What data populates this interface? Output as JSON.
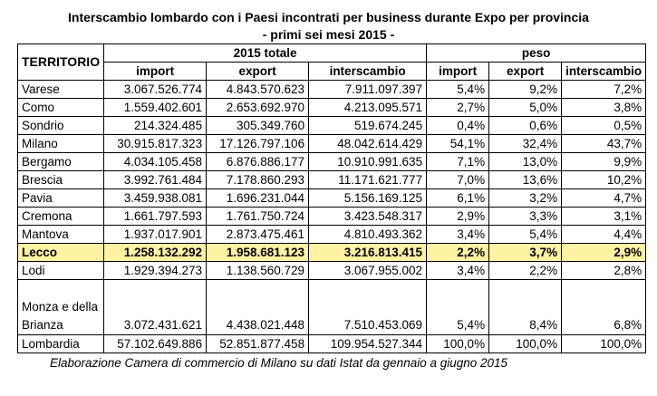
{
  "title_line1": "Interscambio lombardo con i Paesi incontrati per business durante Expo per provincia",
  "title_line2": "- primi sei mesi 2015 -",
  "headers": {
    "territorio": "TERRITORIO",
    "group1": "2015 totale",
    "group2": "peso",
    "import": "import",
    "export": "export",
    "interscambio": "interscambio"
  },
  "rows": [
    {
      "name": "Varese",
      "import": "3.067.526.774",
      "export": "4.843.570.623",
      "interscambio": "7.911.097.397",
      "p_import": "5,4%",
      "p_export": "9,2%",
      "p_inter": "7,2%"
    },
    {
      "name": "Como",
      "import": "1.559.402.601",
      "export": "2.653.692.970",
      "interscambio": "4.213.095.571",
      "p_import": "2,7%",
      "p_export": "5,0%",
      "p_inter": "3,8%"
    },
    {
      "name": "Sondrio",
      "import": "214.324.485",
      "export": "305.349.760",
      "interscambio": "519.674.245",
      "p_import": "0,4%",
      "p_export": "0,6%",
      "p_inter": "0,5%"
    },
    {
      "name": "Milano",
      "import": "30.915.817.323",
      "export": "17.126.797.106",
      "interscambio": "48.042.614.429",
      "p_import": "54,1%",
      "p_export": "32,4%",
      "p_inter": "43,7%"
    },
    {
      "name": "Bergamo",
      "import": "4.034.105.458",
      "export": "6.876.886.177",
      "interscambio": "10.910.991.635",
      "p_import": "7,1%",
      "p_export": "13,0%",
      "p_inter": "9,9%"
    },
    {
      "name": "Brescia",
      "import": "3.992.761.484",
      "export": "7.178.860.293",
      "interscambio": "11.171.621.777",
      "p_import": "7,0%",
      "p_export": "13,6%",
      "p_inter": "10,2%"
    },
    {
      "name": "Pavia",
      "import": "3.459.938.081",
      "export": "1.696.231.044",
      "interscambio": "5.156.169.125",
      "p_import": "6,1%",
      "p_export": "3,2%",
      "p_inter": "4,7%"
    },
    {
      "name": "Cremona",
      "import": "1.661.797.593",
      "export": "1.761.750.724",
      "interscambio": "3.423.548.317",
      "p_import": "2,9%",
      "p_export": "3,3%",
      "p_inter": "3,1%"
    },
    {
      "name": "Mantova",
      "import": "1.937.017.901",
      "export": "2.873.475.461",
      "interscambio": "4.810.493.362",
      "p_import": "3,4%",
      "p_export": "5,4%",
      "p_inter": "4,4%"
    },
    {
      "name": "Lecco",
      "import": "1.258.132.292",
      "export": "1.958.681.123",
      "interscambio": "3.216.813.415",
      "p_import": "2,2%",
      "p_export": "3,7%",
      "p_inter": "2,9%"
    },
    {
      "name": "Lodi",
      "import": "1.929.394.273",
      "export": "1.138.560.729",
      "interscambio": "3.067.955.002",
      "p_import": "3,4%",
      "p_export": "2,2%",
      "p_inter": "2,8%"
    },
    {
      "name": "Monza e della Brianza",
      "import": "3.072.431.621",
      "export": "4.438.021.448",
      "interscambio": "7.510.453.069",
      "p_import": "5,4%",
      "p_export": "8,4%",
      "p_inter": "6,8%"
    },
    {
      "name": "Lombardia",
      "import": "57.102.649.886",
      "export": "52.851.877.458",
      "interscambio": "109.954.527.344",
      "p_import": "100,0%",
      "p_export": "100,0%",
      "p_inter": "100,0%"
    }
  ],
  "note": "Elaborazione Camera di commercio di Milano su dati Istat da gennaio a giugno 2015",
  "highlight_color": "#fff3a3"
}
